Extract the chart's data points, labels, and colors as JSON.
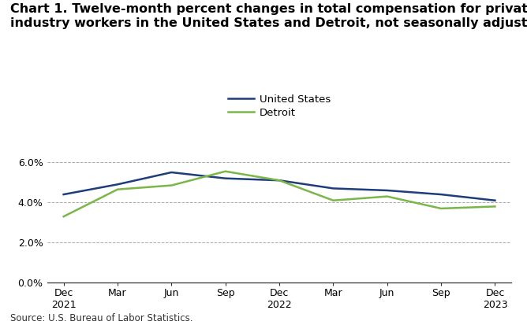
{
  "title_line1": "Chart 1. Twelve-month percent changes in total compensation for private",
  "title_line2": "industry workers in the United States and Detroit, not seasonally adjusted",
  "x_labels": [
    "Dec\n2021",
    "Mar",
    "Jun",
    "Sep",
    "Dec\n2022",
    "Mar",
    "Jun",
    "Sep",
    "Dec\n2023"
  ],
  "us_values": [
    4.4,
    4.9,
    5.5,
    5.2,
    5.1,
    4.7,
    4.6,
    4.4,
    4.1
  ],
  "detroit_values": [
    3.3,
    4.65,
    4.85,
    5.55,
    5.1,
    4.1,
    4.3,
    3.7,
    3.8
  ],
  "us_color": "#1f3d7a",
  "detroit_color": "#7ab648",
  "us_label": "United States",
  "detroit_label": "Detroit",
  "ylim": [
    0.0,
    6.8
  ],
  "yticks": [
    0.0,
    2.0,
    4.0,
    6.0
  ],
  "ytick_labels": [
    "0.0%",
    "2.0%",
    "4.0%",
    "6.0%"
  ],
  "grid_color": "#aaaaaa",
  "background_color": "#ffffff",
  "source_text": "Source: U.S. Bureau of Labor Statistics.",
  "line_width": 1.8,
  "title_fontsize": 11.5,
  "tick_fontsize": 9,
  "legend_fontsize": 9.5,
  "source_fontsize": 8.5
}
